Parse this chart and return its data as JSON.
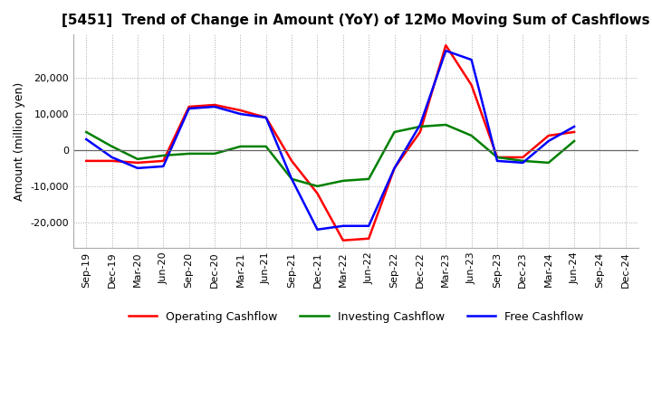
{
  "title": "[5451]  Trend of Change in Amount (YoY) of 12Mo Moving Sum of Cashflows",
  "ylabel": "Amount (million yen)",
  "x_labels": [
    "Sep-19",
    "Dec-19",
    "Mar-20",
    "Jun-20",
    "Sep-20",
    "Dec-20",
    "Mar-21",
    "Jun-21",
    "Sep-21",
    "Dec-21",
    "Mar-22",
    "Jun-22",
    "Sep-22",
    "Dec-22",
    "Mar-23",
    "Jun-23",
    "Sep-23",
    "Dec-23",
    "Mar-24",
    "Jun-24",
    "Sep-24",
    "Dec-24"
  ],
  "operating": [
    -3000,
    -3000,
    -3500,
    -3000,
    12000,
    12500,
    11000,
    9000,
    -3000,
    -12000,
    -25000,
    -24500,
    -5000,
    5000,
    29000,
    18000,
    -2000,
    -2000,
    4000,
    5000,
    null,
    null
  ],
  "investing": [
    5000,
    1000,
    -2500,
    -1500,
    -1000,
    -1000,
    1000,
    1000,
    -8000,
    -10000,
    -8500,
    -8000,
    5000,
    6500,
    7000,
    4000,
    -2000,
    -3000,
    -3500,
    2500,
    null,
    null
  ],
  "free": [
    3000,
    -2000,
    -5000,
    -4500,
    11500,
    12000,
    10000,
    9000,
    -8000,
    -22000,
    -21000,
    -21000,
    -5000,
    7000,
    27500,
    25000,
    -3000,
    -3500,
    2500,
    6500,
    null,
    null
  ],
  "operating_color": "#ff0000",
  "investing_color": "#008000",
  "free_color": "#0000ff",
  "ylim": [
    -27000,
    32000
  ],
  "yticks": [
    -20000,
    -10000,
    0,
    10000,
    20000
  ],
  "grid_color": "#aaaaaa",
  "background_color": "#ffffff",
  "title_fontsize": 11,
  "axis_fontsize": 9,
  "tick_fontsize": 8
}
